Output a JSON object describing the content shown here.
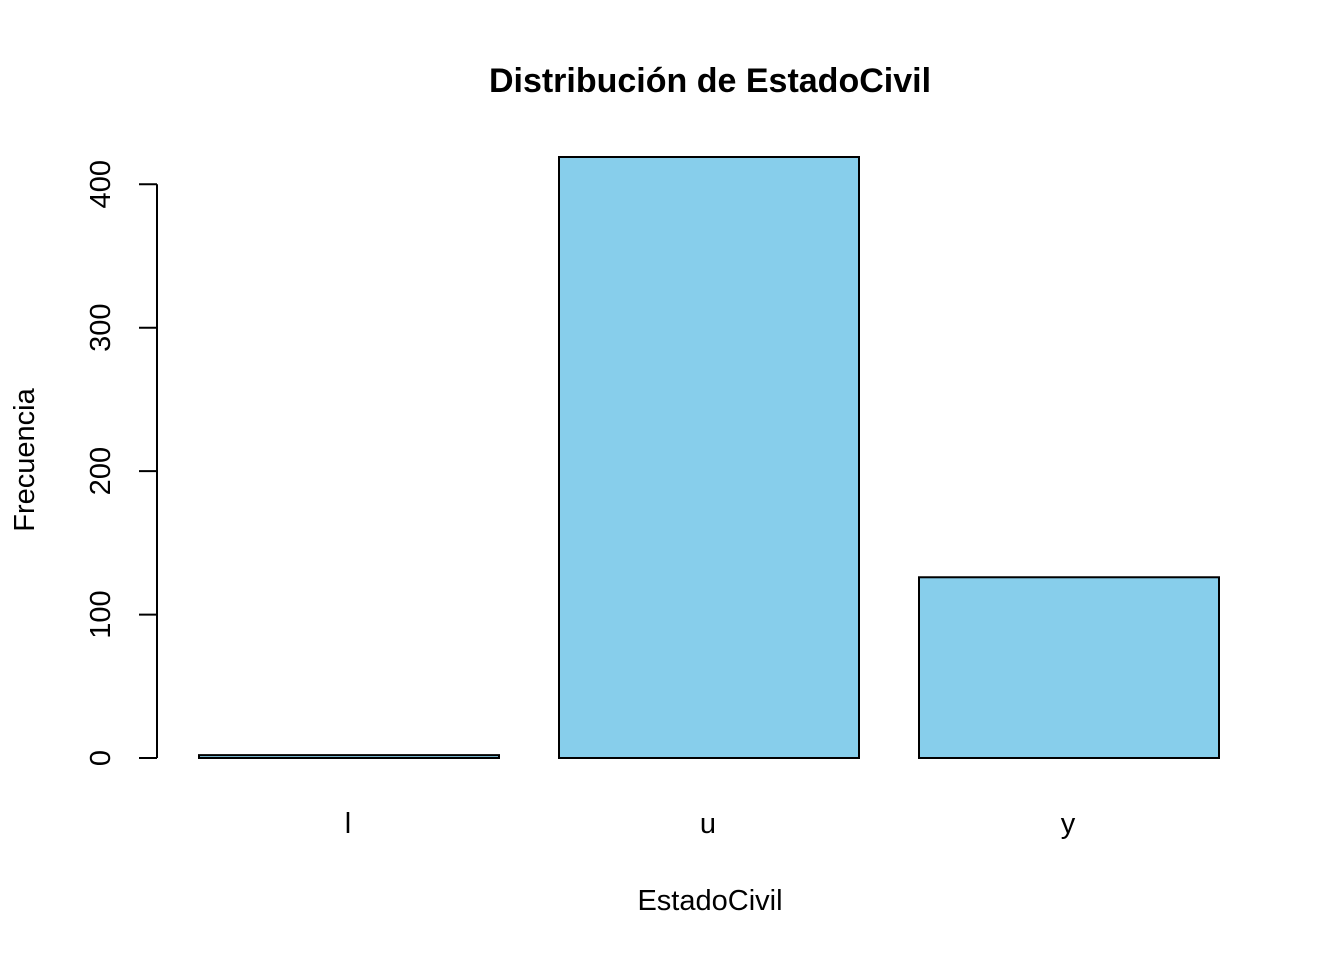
{
  "chart_data": {
    "type": "bar",
    "title": "Distribución de EstadoCivil",
    "xlabel": "EstadoCivil",
    "ylabel": "Frecuencia",
    "categories": [
      "l",
      "u",
      "y"
    ],
    "values": [
      2,
      419,
      126
    ],
    "yticks": [
      0,
      100,
      200,
      300,
      400
    ],
    "ylim": [
      0,
      419
    ],
    "grid": false,
    "bar_color": "#87CEEB",
    "border_color": "#000000"
  }
}
